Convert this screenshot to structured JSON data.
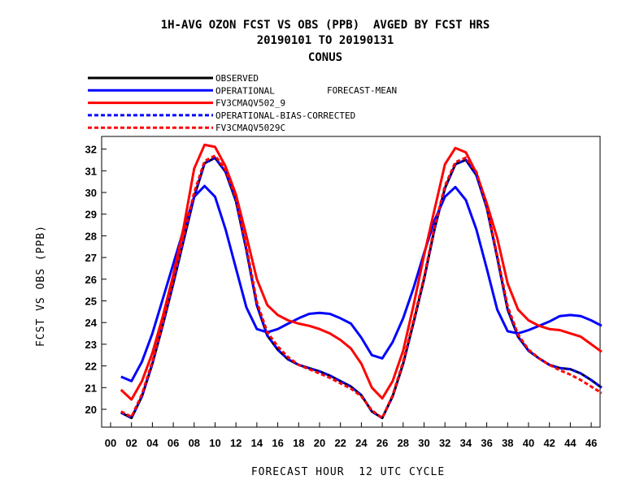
{
  "chart_data": {
    "type": "line",
    "title": [
      "1H-AVG OZON FCST VS OBS (PPB)  AVGED BY FCST HRS",
      "20190101 TO 20190131",
      "CONUS"
    ],
    "legend_note": "FORECAST-MEAN",
    "xlabel": "FORECAST HOUR  12 UTC CYCLE",
    "ylabel": "FCST VS OBS (PPB)",
    "xlim": [
      -0.5,
      47
    ],
    "ylim": [
      19.2,
      32.6
    ],
    "x_ticks": [
      "00",
      "02",
      "04",
      "06",
      "08",
      "10",
      "12",
      "14",
      "16",
      "18",
      "20",
      "22",
      "24",
      "26",
      "28",
      "30",
      "32",
      "34",
      "36",
      "38",
      "40",
      "42",
      "44",
      "46"
    ],
    "y_ticks": [
      "20",
      "21",
      "22",
      "23",
      "24",
      "25",
      "26",
      "27",
      "28",
      "29",
      "30",
      "31",
      "32"
    ],
    "x": [
      1,
      2,
      3,
      4,
      5,
      6,
      7,
      8,
      9,
      10,
      11,
      12,
      13,
      14,
      15,
      16,
      17,
      18,
      19,
      20,
      21,
      22,
      23,
      24,
      25,
      26,
      27,
      28,
      29,
      30,
      31,
      32,
      33,
      34,
      35,
      36,
      37,
      38,
      39,
      40,
      41,
      42,
      43,
      44,
      45,
      46,
      47
    ],
    "series": [
      {
        "name": "OBSERVED",
        "color": "#000000",
        "dashed": false,
        "values": [
          19.85,
          19.6,
          20.6,
          22.1,
          23.9,
          25.8,
          27.8,
          29.8,
          31.35,
          31.6,
          30.95,
          29.6,
          27.35,
          24.8,
          23.4,
          22.75,
          22.3,
          22.05,
          21.9,
          21.75,
          21.55,
          21.3,
          21.05,
          20.65,
          19.9,
          19.6,
          20.6,
          22.1,
          24.0,
          26.0,
          28.3,
          30.2,
          31.3,
          31.5,
          30.8,
          29.3,
          27.0,
          24.6,
          23.35,
          22.7,
          22.35,
          22.05,
          21.9,
          21.85,
          21.65,
          21.35,
          21.0
        ]
      },
      {
        "name": "OPERATIONAL",
        "color": "#0000ff",
        "dashed": false,
        "values": [
          21.5,
          21.3,
          22.2,
          23.5,
          25.1,
          26.7,
          28.3,
          29.8,
          30.3,
          29.8,
          28.3,
          26.5,
          24.7,
          23.7,
          23.55,
          23.7,
          23.95,
          24.2,
          24.4,
          24.45,
          24.4,
          24.2,
          23.95,
          23.3,
          22.5,
          22.35,
          23.1,
          24.2,
          25.6,
          27.2,
          28.7,
          29.8,
          30.25,
          29.65,
          28.3,
          26.5,
          24.6,
          23.6,
          23.5,
          23.65,
          23.85,
          24.05,
          24.3,
          24.35,
          24.3,
          24.1,
          23.85
        ]
      },
      {
        "name": "FV3CMAQV502_9",
        "color": "#ff0000",
        "dashed": false,
        "values": [
          20.9,
          20.45,
          21.3,
          22.6,
          24.3,
          26.2,
          28.4,
          31.1,
          32.2,
          32.1,
          31.2,
          29.9,
          28.0,
          26.0,
          24.8,
          24.35,
          24.1,
          23.95,
          23.85,
          23.7,
          23.5,
          23.2,
          22.8,
          22.1,
          21.0,
          20.5,
          21.3,
          22.7,
          24.8,
          27.1,
          29.2,
          31.3,
          32.05,
          31.85,
          30.9,
          29.5,
          27.9,
          25.8,
          24.6,
          24.1,
          23.85,
          23.7,
          23.65,
          23.5,
          23.35,
          23.0,
          22.65
        ]
      },
      {
        "name": "OPERATIONAL-BIAS-CORRECTED",
        "color": "#0000ff",
        "dashed": true,
        "values": [
          19.85,
          19.6,
          20.6,
          22.1,
          23.9,
          25.8,
          27.8,
          29.8,
          31.35,
          31.6,
          30.95,
          29.6,
          27.35,
          24.8,
          23.4,
          22.75,
          22.3,
          22.05,
          21.9,
          21.75,
          21.55,
          21.3,
          21.05,
          20.65,
          19.9,
          19.6,
          20.6,
          22.1,
          24.0,
          26.0,
          28.3,
          30.2,
          31.3,
          31.5,
          30.8,
          29.3,
          27.0,
          24.6,
          23.35,
          22.7,
          22.35,
          22.05,
          21.9,
          21.85,
          21.65,
          21.35,
          21.0
        ]
      },
      {
        "name": "FV3CMAQV5029C",
        "color": "#ff0000",
        "dashed": true,
        "values": [
          19.9,
          19.65,
          20.7,
          22.2,
          24.0,
          26.0,
          28.0,
          30.0,
          31.45,
          31.7,
          31.05,
          29.75,
          27.5,
          24.95,
          23.55,
          22.9,
          22.4,
          22.05,
          21.85,
          21.65,
          21.45,
          21.2,
          20.95,
          20.6,
          19.95,
          19.6,
          20.65,
          22.2,
          24.1,
          26.1,
          28.4,
          30.3,
          31.4,
          31.6,
          30.95,
          29.4,
          27.1,
          24.75,
          23.45,
          22.75,
          22.35,
          22.05,
          21.8,
          21.6,
          21.35,
          21.05,
          20.75
        ]
      }
    ]
  }
}
